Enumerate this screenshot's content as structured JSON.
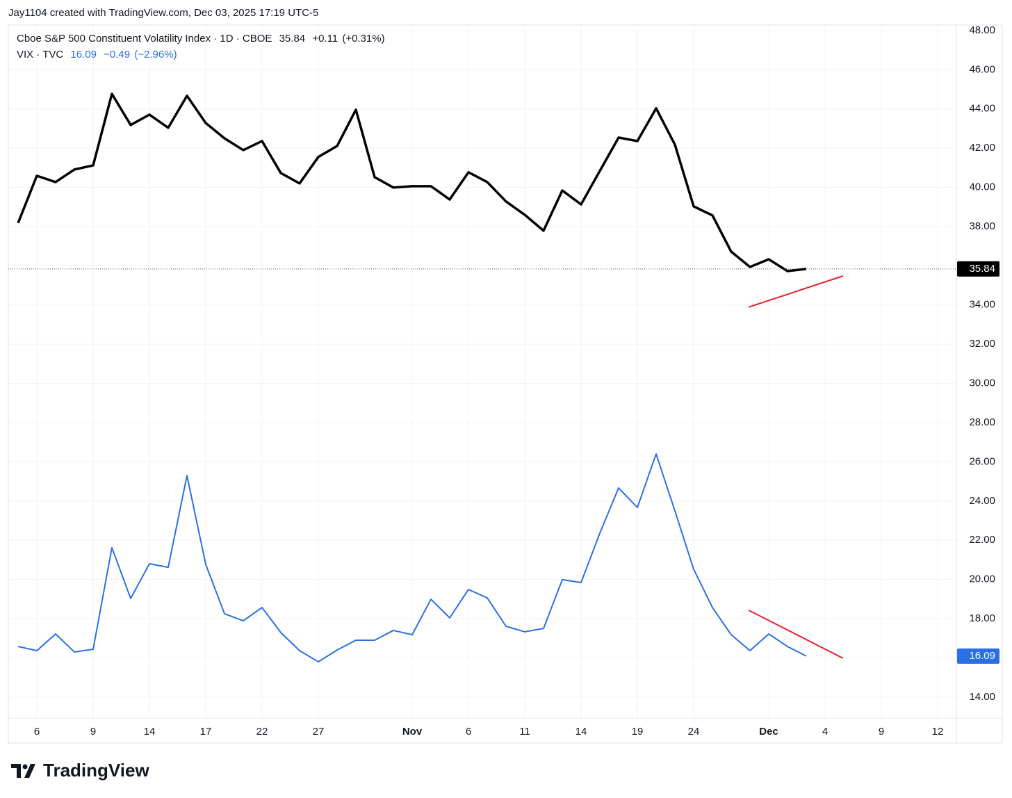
{
  "header": {
    "credit": "Jay1104 created with TradingView.com, Dec 03, 2025 17:19 UTC-5",
    "brand": "TradingView"
  },
  "chart_data": {
    "type": "line",
    "categories": [
      null,
      "6",
      null,
      null,
      "9",
      null,
      null,
      "14",
      null,
      null,
      "17",
      null,
      null,
      "22",
      null,
      null,
      "27",
      null,
      null,
      null,
      null,
      "Nov",
      null,
      null,
      "6",
      null,
      null,
      "11",
      null,
      null,
      "14",
      null,
      null,
      "19",
      null,
      null,
      "24",
      null,
      null,
      null,
      "Dec",
      null,
      null,
      "4",
      null,
      null,
      "9",
      null,
      null,
      "12"
    ],
    "series": [
      {
        "name": "Cboe S&P 500 Constituent Volatility Index · 1D · CBOE",
        "color": "#000000",
        "last": "35.84",
        "change": "+0.11",
        "change_pct": "(+0.31%)",
        "values": [
          38.18,
          40.59,
          40.27,
          40.91,
          41.12,
          44.77,
          43.18,
          43.71,
          43.04,
          44.67,
          43.28,
          42.5,
          41.9,
          42.36,
          40.73,
          40.2,
          41.55,
          42.11,
          43.96,
          40.52,
          39.99,
          40.06,
          40.06,
          39.38,
          40.77,
          40.27,
          39.28,
          38.6,
          37.79,
          39.84,
          39.13,
          40.84,
          42.54,
          42.36,
          44.03,
          42.18,
          39.03,
          38.57,
          36.72,
          35.94,
          36.33,
          35.73,
          35.84,
          null,
          null,
          null,
          null,
          null,
          null,
          null
        ]
      },
      {
        "name": "VIX · TVC",
        "color": "#2b6fe6",
        "last": "16.09",
        "change": "−0.49",
        "change_pct": "(−2.96%)",
        "values": [
          16.58,
          16.37,
          17.22,
          16.3,
          16.44,
          21.62,
          19.03,
          20.8,
          20.62,
          25.3,
          20.77,
          18.25,
          17.89,
          18.57,
          17.29,
          16.37,
          15.8,
          16.4,
          16.9,
          16.9,
          17.4,
          17.18,
          18.99,
          18.04,
          19.49,
          19.06,
          17.61,
          17.33,
          17.5,
          19.99,
          19.84,
          22.36,
          24.67,
          23.67,
          26.4,
          23.5,
          20.52,
          18.57,
          17.18,
          16.37,
          17.22,
          16.58,
          16.09,
          null,
          null,
          null,
          null,
          null,
          null,
          null
        ]
      }
    ],
    "annotations": [
      {
        "color": "#e8202e",
        "x": [
          38.93,
          43.96
        ],
        "y": [
          33.89,
          35.48
        ]
      },
      {
        "color": "#e8202e",
        "x": [
          38.93,
          43.96
        ],
        "y": [
          18.43,
          15.98
        ]
      }
    ],
    "ylim": [
      12.93,
      48.28
    ],
    "yticks": [
      {
        "value": 14,
        "label": "14.00"
      },
      {
        "value": 16,
        "label": "16.00"
      },
      {
        "value": 18,
        "label": "18.00"
      },
      {
        "value": 20,
        "label": "20.00"
      },
      {
        "value": 22,
        "label": "22.00"
      },
      {
        "value": 24,
        "label": "24.00"
      },
      {
        "value": 26,
        "label": "26.00"
      },
      {
        "value": 28,
        "label": "28.00"
      },
      {
        "value": 30,
        "label": "30.00"
      },
      {
        "value": 32,
        "label": "32.00"
      },
      {
        "value": 34,
        "label": "34.00"
      },
      {
        "value": 36,
        "label": "36.00"
      },
      {
        "value": 38,
        "label": "38.00"
      },
      {
        "value": 40,
        "label": "40.00"
      },
      {
        "value": 42,
        "label": "42.00"
      },
      {
        "value": 44,
        "label": "44.00"
      },
      {
        "value": 46,
        "label": "46.00"
      },
      {
        "value": 48,
        "label": "48.00"
      }
    ],
    "grid": true
  }
}
